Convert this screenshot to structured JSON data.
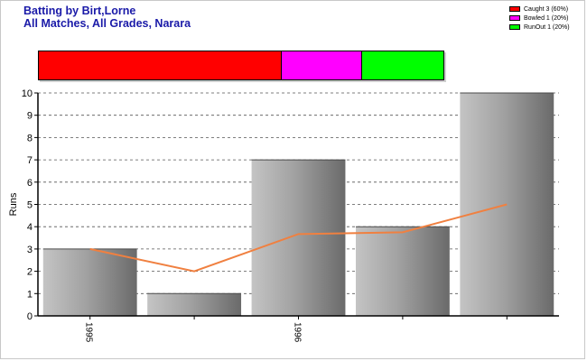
{
  "header": {
    "title_line1": "Batting by Birt,Lorne",
    "title_line2": "All Matches, All Grades, Narara"
  },
  "legend": [
    {
      "label": "Caught 3 (60%)",
      "color": "#ff0000"
    },
    {
      "label": "Bowled 1 (20%)",
      "color": "#ff00ff"
    },
    {
      "label": "RunOut 1 (20%)",
      "color": "#00ff00"
    }
  ],
  "dismissals": [
    {
      "name": "Caught",
      "count": 3,
      "percent": 60,
      "color": "#ff0000"
    },
    {
      "name": "Bowled",
      "count": 1,
      "percent": 20,
      "color": "#ff00ff"
    },
    {
      "name": "RunOut",
      "count": 1,
      "percent": 20,
      "color": "#00ff00"
    }
  ],
  "chart_data": {
    "type": "bar",
    "categories": [
      "1995",
      "",
      "1996",
      "",
      ""
    ],
    "values": [
      3,
      1,
      7,
      4,
      10
    ],
    "line": [
      3,
      2,
      3.67,
      3.75,
      5
    ],
    "line_color": "#f08040",
    "xlabel": "",
    "ylabel": "Runs",
    "ylim": [
      0,
      10
    ],
    "yticks": [
      0,
      1,
      2,
      3,
      4,
      5,
      6,
      7,
      8,
      9,
      10
    ],
    "grid": true
  }
}
